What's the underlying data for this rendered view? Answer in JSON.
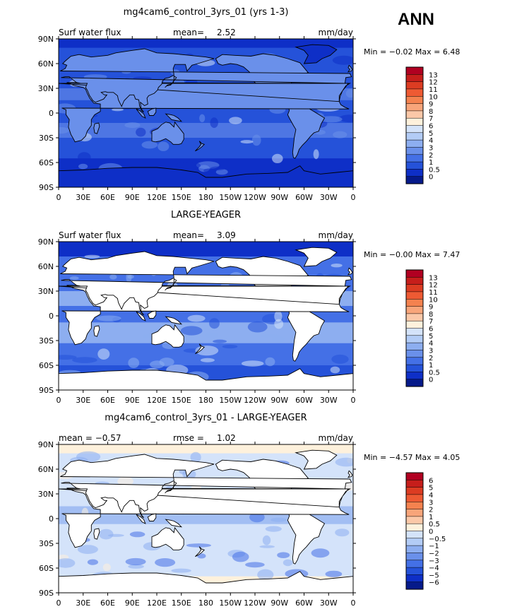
{
  "season": "ANN",
  "panels": [
    {
      "title": "mg4cam6_control_3yrs_01 (yrs 1-3)",
      "left_label": "Surf water flux",
      "mean_label": "mean=",
      "mean_value": "2.52",
      "units": "mm/day",
      "stats": "Min =  −0.02 Max =   6.48",
      "land_masked": false,
      "colorbar_labels": [
        "13",
        "12",
        "11",
        "10",
        "9",
        "8",
        "7",
        "6",
        "5",
        "4",
        "3",
        "2",
        "1",
        "0.5",
        "0"
      ],
      "colorbar_colors": [
        "#b10021",
        "#c61e1b",
        "#dc3c22",
        "#ee5a33",
        "#f4824f",
        "#f8a57a",
        "#fbc8a8",
        "#fef1dc",
        "#d4e3fa",
        "#b3ccf6",
        "#8daef0",
        "#6a90ea",
        "#4470e6",
        "#2552d9",
        "#0e2fc7",
        "#061a8a"
      ]
    },
    {
      "title": "LARGE-YEAGER",
      "left_label": "Surf water flux",
      "mean_label": "mean=",
      "mean_value": "3.09",
      "units": "mm/day",
      "stats": "Min =  −0.00 Max =   7.47",
      "land_masked": true,
      "colorbar_labels": [
        "13",
        "12",
        "11",
        "10",
        "9",
        "8",
        "7",
        "6",
        "5",
        "4",
        "3",
        "2",
        "1",
        "0.5",
        "0"
      ],
      "colorbar_colors": [
        "#b10021",
        "#c61e1b",
        "#dc3c22",
        "#ee5a33",
        "#f4824f",
        "#f8a57a",
        "#fbc8a8",
        "#fef1dc",
        "#d4e3fa",
        "#b3ccf6",
        "#8daef0",
        "#6a90ea",
        "#4470e6",
        "#2552d9",
        "#0e2fc7",
        "#061a8a"
      ]
    },
    {
      "title": "mg4cam6_control_3yrs_01 - LARGE-YEAGER",
      "left_label": "mean =  −0.57",
      "mean_label": "rmse =",
      "mean_value": "1.02",
      "units": "mm/day",
      "stats": "Min =  −4.57 Max =   4.05",
      "land_masked": true,
      "colorbar_labels": [
        "6",
        "5",
        "4",
        "3",
        "2",
        "1",
        "0.5",
        "0",
        "−0.5",
        "−1",
        "−2",
        "−3",
        "−4",
        "−5",
        "−6"
      ],
      "colorbar_colors": [
        "#b10021",
        "#c61e1b",
        "#dc3c22",
        "#ee5a33",
        "#f4824f",
        "#f8a57a",
        "#fbc8a8",
        "#fef1dc",
        "#d4e3fa",
        "#b3ccf6",
        "#8daef0",
        "#6a90ea",
        "#4470e6",
        "#2552d9",
        "#0e2fc7",
        "#061a8a"
      ]
    }
  ],
  "lat_labels": [
    "90N",
    "60N",
    "30N",
    "0",
    "30S",
    "60S",
    "90S"
  ],
  "lon_labels": [
    "0",
    "30E",
    "60E",
    "90E",
    "120E",
    "150E",
    "180",
    "150W",
    "120W",
    "90W",
    "60W",
    "30W",
    "0"
  ],
  "map_colors": {
    "panel1_base": "#2552d9",
    "panel1_high": "#6a90ea",
    "panel1_peak": "#d4e3fa",
    "panel1_low": "#0e2fc7",
    "panel2_base": "#4470e6",
    "panel2_mid": "#8daef0",
    "panel2_low": "#2552d9",
    "panel3_base": "#d4e3fa",
    "panel3_neg": "#8daef0",
    "panel3_pos": "#fef1dc",
    "land": "#ffffff",
    "coast": "#000000"
  }
}
